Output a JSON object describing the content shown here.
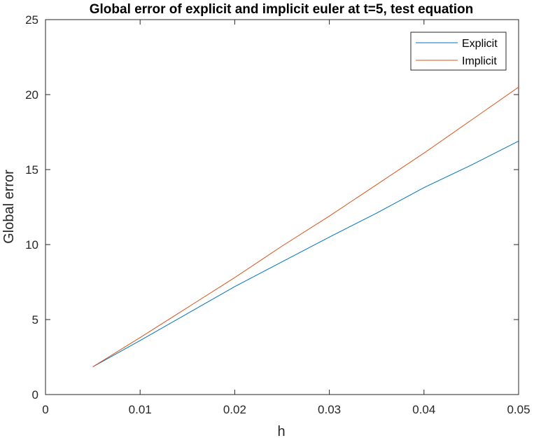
{
  "chart_data": {
    "type": "line",
    "title": "Global error of explicit and implicit euler at t=5, test equation",
    "xlabel": "h",
    "ylabel": "Global error",
    "xlim": [
      0,
      0.05
    ],
    "ylim": [
      0,
      25
    ],
    "xticks": [
      0,
      0.01,
      0.02,
      0.03,
      0.04,
      0.05
    ],
    "xtick_labels": [
      "0",
      "0.01",
      "0.02",
      "0.03",
      "0.04",
      "0.05"
    ],
    "yticks": [
      0,
      5,
      10,
      15,
      20,
      25
    ],
    "ytick_labels": [
      "0",
      "5",
      "10",
      "15",
      "20",
      "25"
    ],
    "grid": false,
    "legend_position": "top-right",
    "x": [
      0.005,
      0.01,
      0.015,
      0.02,
      0.025,
      0.03,
      0.035,
      0.04,
      0.045,
      0.05
    ],
    "series": [
      {
        "name": "Explicit",
        "color": "#0072BD",
        "values": [
          1.85,
          3.6,
          5.4,
          7.2,
          8.85,
          10.5,
          12.1,
          13.8,
          15.3,
          16.9
        ]
      },
      {
        "name": "Implicit",
        "color": "#D95319",
        "values": [
          1.85,
          3.8,
          5.8,
          7.8,
          9.9,
          11.9,
          14.0,
          16.1,
          18.3,
          20.5
        ]
      }
    ]
  }
}
